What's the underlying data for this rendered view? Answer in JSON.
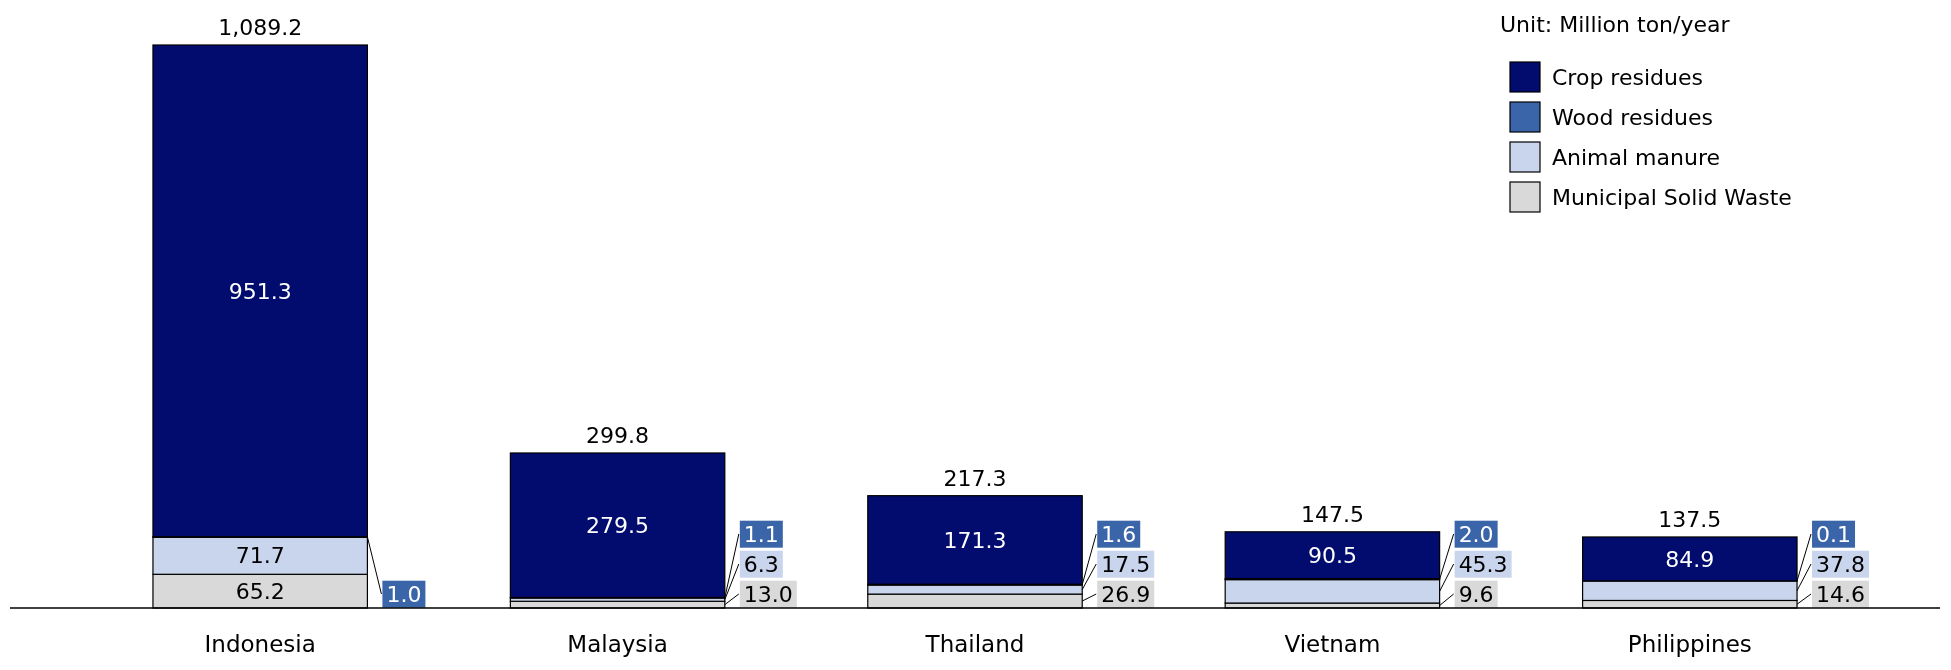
{
  "chart_data": {
    "type": "bar",
    "stacked": true,
    "categories": [
      "Indonesia",
      "Malaysia",
      "Thailand",
      "Vietnam",
      "Philippines"
    ],
    "series": [
      {
        "name": "Municipal Solid Waste",
        "color": "#d9d9d9",
        "values": [
          65.2,
          13.0,
          26.9,
          9.6,
          14.6
        ],
        "value_labels": [
          "65.2",
          "13.0",
          "26.9",
          "9.6",
          "14.6"
        ]
      },
      {
        "name": "Animal manure",
        "color": "#c9d5ec",
        "values": [
          71.7,
          6.3,
          17.5,
          45.3,
          37.8
        ],
        "value_labels": [
          "71.7",
          "6.3",
          "17.5",
          "45.3",
          "37.8"
        ]
      },
      {
        "name": "Wood residues",
        "color": "#3b65a9",
        "values": [
          1.0,
          1.1,
          1.6,
          2.0,
          0.1
        ],
        "value_labels": [
          "1.0",
          "1.1",
          "1.6",
          "2.0",
          "0.1"
        ]
      },
      {
        "name": "Crop residues",
        "color": "#010c6e",
        "values": [
          951.3,
          279.5,
          171.3,
          90.5,
          84.9
        ],
        "value_labels": [
          "951.3",
          "279.5",
          "171.3",
          "90.5",
          "84.9"
        ]
      }
    ],
    "totals": [
      "1,089.2",
      "299.8",
      "217.3",
      "147.5",
      "137.5"
    ],
    "legend": "top right",
    "annotations": [
      "Unit: Million ton/year"
    ]
  }
}
